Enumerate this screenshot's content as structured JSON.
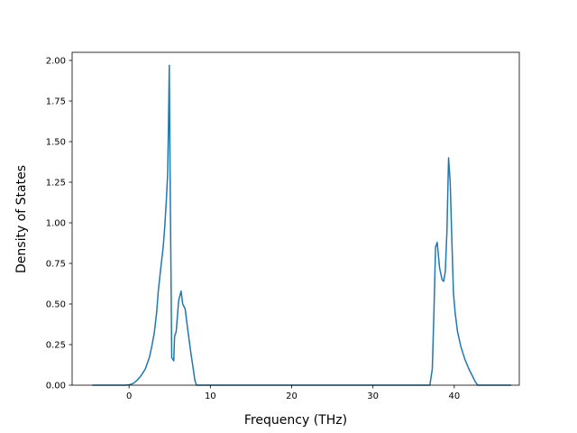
{
  "chart_data": {
    "type": "line",
    "title": "",
    "xlabel": "Frequency (THz)",
    "ylabel": "Density of States",
    "xlim": [
      -7,
      48
    ],
    "ylim": [
      0,
      2.05
    ],
    "xticks": [
      0,
      10,
      20,
      30,
      40
    ],
    "xtick_labels": [
      "0",
      "10",
      "20",
      "30",
      "40"
    ],
    "yticks": [
      0,
      0.25,
      0.5,
      0.75,
      1.0,
      1.25,
      1.5,
      1.75,
      2.0
    ],
    "ytick_labels": [
      "0.00",
      "0.25",
      "0.50",
      "0.75",
      "1.00",
      "1.25",
      "1.50",
      "1.75",
      "2.00"
    ],
    "grid": false,
    "legend": false,
    "series": [
      {
        "color": "#1f77b4",
        "x": [
          -4.5,
          -0.5,
          0,
          0.5,
          1,
          1.5,
          2,
          2.5,
          2.8,
          3.1,
          3.4,
          3.6,
          3.9,
          4.2,
          4.4,
          4.6,
          4.75,
          4.85,
          4.95,
          5.05,
          5.15,
          5.25,
          5.5,
          5.6,
          5.8,
          6.1,
          6.4,
          6.6,
          6.9,
          7.2,
          7.6,
          7.9,
          8.1,
          8.3,
          36.0,
          37.0,
          37.3,
          37.5,
          37.7,
          37.9,
          38.2,
          38.5,
          38.7,
          38.9,
          39.1,
          39.3,
          39.5,
          39.7,
          39.9,
          40.1,
          40.4,
          40.8,
          41.3,
          41.8,
          42.3,
          42.6,
          42.9,
          43.5,
          47.0
        ],
        "y": [
          0,
          0,
          0.002,
          0.01,
          0.03,
          0.06,
          0.1,
          0.17,
          0.24,
          0.32,
          0.45,
          0.58,
          0.72,
          0.85,
          0.98,
          1.15,
          1.3,
          1.6,
          1.97,
          1.3,
          0.75,
          0.17,
          0.15,
          0.3,
          0.33,
          0.52,
          0.58,
          0.5,
          0.47,
          0.35,
          0.2,
          0.1,
          0.03,
          0,
          0,
          0,
          0.1,
          0.45,
          0.85,
          0.88,
          0.72,
          0.65,
          0.64,
          0.7,
          0.95,
          1.4,
          1.25,
          0.9,
          0.57,
          0.45,
          0.33,
          0.24,
          0.16,
          0.1,
          0.05,
          0.02,
          0.0,
          0.0,
          0.0
        ]
      }
    ]
  }
}
